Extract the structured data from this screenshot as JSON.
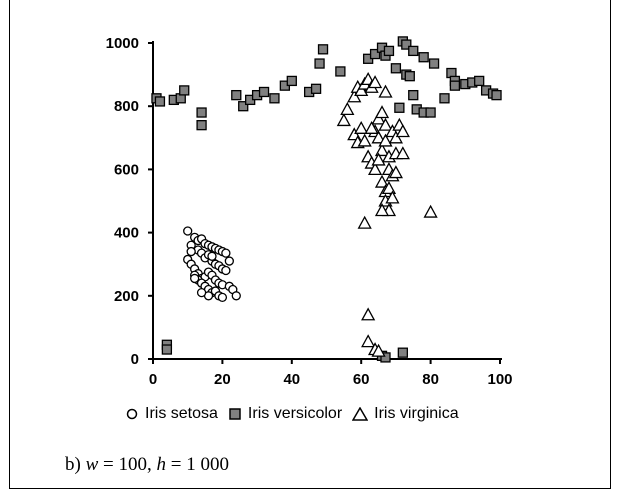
{
  "chart_data": {
    "type": "scatter",
    "xlim": [
      0,
      100
    ],
    "ylim": [
      0,
      1000
    ],
    "xticks": [
      0,
      20,
      40,
      60,
      80,
      100
    ],
    "yticks": [
      0,
      200,
      400,
      600,
      800,
      1000
    ],
    "grid": false,
    "legend_position": "bottom",
    "series": [
      {
        "name": "Iris setosa",
        "marker": "circle",
        "color": "#ffffff",
        "points": [
          [
            10,
            405
          ],
          [
            12,
            385
          ],
          [
            13,
            375
          ],
          [
            14,
            380
          ],
          [
            15,
            365
          ],
          [
            16,
            360
          ],
          [
            17,
            355
          ],
          [
            18,
            350
          ],
          [
            19,
            345
          ],
          [
            20,
            340
          ],
          [
            21,
            335
          ],
          [
            22,
            310
          ],
          [
            11,
            360
          ],
          [
            13,
            345
          ],
          [
            14,
            335
          ],
          [
            15,
            320
          ],
          [
            16,
            330
          ],
          [
            17,
            310
          ],
          [
            18,
            300
          ],
          [
            19,
            295
          ],
          [
            20,
            285
          ],
          [
            21,
            280
          ],
          [
            10,
            315
          ],
          [
            11,
            300
          ],
          [
            12,
            285
          ],
          [
            13,
            270
          ],
          [
            14,
            255
          ],
          [
            15,
            260
          ],
          [
            16,
            275
          ],
          [
            17,
            265
          ],
          [
            18,
            250
          ],
          [
            19,
            240
          ],
          [
            20,
            235
          ],
          [
            22,
            230
          ],
          [
            23,
            220
          ],
          [
            24,
            200
          ],
          [
            12,
            265
          ],
          [
            13,
            250
          ],
          [
            14,
            240
          ],
          [
            15,
            230
          ],
          [
            16,
            220
          ],
          [
            17,
            210
          ],
          [
            18,
            215
          ],
          [
            19,
            200
          ],
          [
            20,
            195
          ],
          [
            16,
            200
          ],
          [
            14,
            210
          ],
          [
            12,
            255
          ],
          [
            11,
            340
          ],
          [
            17,
            325
          ]
        ]
      },
      {
        "name": "Iris versicolor",
        "marker": "square",
        "color": "#808080",
        "points": [
          [
            1,
            825
          ],
          [
            2,
            815
          ],
          [
            6,
            820
          ],
          [
            8,
            825
          ],
          [
            9,
            850
          ],
          [
            14,
            780
          ],
          [
            14,
            740
          ],
          [
            24,
            835
          ],
          [
            26,
            800
          ],
          [
            28,
            820
          ],
          [
            30,
            835
          ],
          [
            32,
            845
          ],
          [
            35,
            825
          ],
          [
            38,
            865
          ],
          [
            40,
            880
          ],
          [
            45,
            845
          ],
          [
            47,
            855
          ],
          [
            48,
            935
          ],
          [
            49,
            980
          ],
          [
            54,
            910
          ],
          [
            60,
            855
          ],
          [
            62,
            950
          ],
          [
            64,
            965
          ],
          [
            66,
            985
          ],
          [
            67,
            960
          ],
          [
            68,
            975
          ],
          [
            70,
            920
          ],
          [
            71,
            795
          ],
          [
            72,
            1005
          ],
          [
            73,
            995
          ],
          [
            73,
            900
          ],
          [
            74,
            895
          ],
          [
            75,
            975
          ],
          [
            75,
            835
          ],
          [
            76,
            790
          ],
          [
            78,
            955
          ],
          [
            78,
            780
          ],
          [
            80,
            780
          ],
          [
            81,
            935
          ],
          [
            84,
            825
          ],
          [
            86,
            905
          ],
          [
            87,
            880
          ],
          [
            87,
            865
          ],
          [
            90,
            870
          ],
          [
            92,
            875
          ],
          [
            94,
            880
          ],
          [
            96,
            850
          ],
          [
            98,
            840
          ],
          [
            99,
            835
          ],
          [
            4,
            45
          ],
          [
            4,
            30
          ],
          [
            66,
            10
          ],
          [
            67,
            5
          ],
          [
            72,
            20
          ]
        ]
      },
      {
        "name": "Iris virginica",
        "marker": "triangle",
        "color": "#ffffff",
        "points": [
          [
            55,
            755
          ],
          [
            56,
            790
          ],
          [
            58,
            830
          ],
          [
            59,
            860
          ],
          [
            60,
            850
          ],
          [
            61,
            870
          ],
          [
            62,
            885
          ],
          [
            63,
            860
          ],
          [
            64,
            875
          ],
          [
            67,
            845
          ],
          [
            58,
            710
          ],
          [
            59,
            685
          ],
          [
            60,
            730
          ],
          [
            61,
            690
          ],
          [
            62,
            640
          ],
          [
            63,
            620
          ],
          [
            64,
            600
          ],
          [
            64,
            720
          ],
          [
            65,
            760
          ],
          [
            65,
            700
          ],
          [
            66,
            780
          ],
          [
            66,
            660
          ],
          [
            67,
            740
          ],
          [
            67,
            690
          ],
          [
            68,
            640
          ],
          [
            68,
            600
          ],
          [
            69,
            580
          ],
          [
            69,
            720
          ],
          [
            70,
            700
          ],
          [
            70,
            650
          ],
          [
            71,
            740
          ],
          [
            72,
            720
          ],
          [
            72,
            650
          ],
          [
            66,
            560
          ],
          [
            67,
            530
          ],
          [
            67,
            500
          ],
          [
            68,
            470
          ],
          [
            68,
            540
          ],
          [
            69,
            510
          ],
          [
            66,
            470
          ],
          [
            61,
            430
          ],
          [
            80,
            465
          ],
          [
            70,
            590
          ],
          [
            65,
            630
          ],
          [
            63,
            730
          ],
          [
            62,
            140
          ],
          [
            62,
            55
          ],
          [
            64,
            30
          ],
          [
            65,
            25
          ]
        ]
      }
    ]
  },
  "caption": {
    "prefix": "b) ",
    "w_var": "w",
    "w_eq": " = 100, ",
    "h_var": "h",
    "h_eq": " = 1 000"
  }
}
